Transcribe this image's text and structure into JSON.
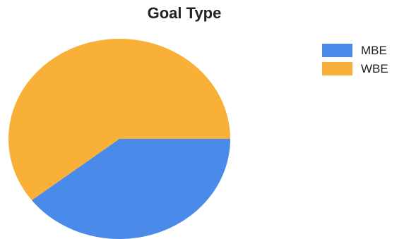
{
  "chart_data": {
    "type": "pie",
    "title": "Goal Type",
    "categories": [
      "MBE",
      "WBE"
    ],
    "values": [
      39.5,
      60.5
    ],
    "colors": [
      "#4a8ae8",
      "#f8b038"
    ],
    "legend_position": "right",
    "start_angle_deg": 0,
    "direction": "clockwise"
  }
}
